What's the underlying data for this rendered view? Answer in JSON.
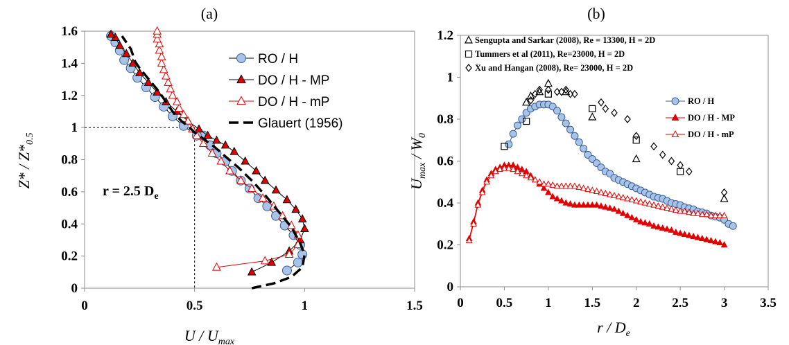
{
  "chart_data": [
    {
      "type": "scatter",
      "panel_label": "(a)",
      "xlabel": "U / U_max",
      "ylabel": "Z* / Z*_0.5",
      "xlim": [
        0,
        1.5
      ],
      "ylim": [
        0,
        1.6
      ],
      "xticks": [
        "0",
        "0.5",
        "1",
        "1.5"
      ],
      "yticks": [
        "0",
        "0.2",
        "0.4",
        "0.6",
        "0.8",
        "1",
        "1.2",
        "1.4",
        "1.6"
      ],
      "annotation": "r = 2.5 D",
      "annotation_sub": "e",
      "reference_lines": {
        "x": 0.5,
        "y": 1.0
      },
      "legend_position": "top-right",
      "series": [
        {
          "name": "RO / H",
          "marker": "circle",
          "fill": "#a7c4e8",
          "stroke": "#3a5f96",
          "x": [
            0.92,
            0.97,
            0.99,
            0.98,
            0.95,
            0.91,
            0.87,
            0.83,
            0.79,
            0.75,
            0.71,
            0.67,
            0.64,
            0.6,
            0.57,
            0.54,
            0.51,
            0.45,
            0.4,
            0.36,
            0.32,
            0.28,
            0.24,
            0.21,
            0.18,
            0.16,
            0.14,
            0.12
          ],
          "y": [
            0.11,
            0.16,
            0.21,
            0.27,
            0.33,
            0.39,
            0.45,
            0.51,
            0.56,
            0.62,
            0.67,
            0.73,
            0.79,
            0.84,
            0.89,
            0.95,
            0.95,
            1.01,
            1.07,
            1.13,
            1.19,
            1.25,
            1.31,
            1.37,
            1.42,
            1.48,
            1.53,
            1.57
          ]
        },
        {
          "name": "DO / H - MP",
          "marker": "triangle",
          "fill": "#e00000",
          "stroke": "#000000",
          "x": [
            0.76,
            0.85,
            0.93,
            0.98,
            1.0,
            0.99,
            0.96,
            0.92,
            0.87,
            0.82,
            0.78,
            0.73,
            0.68,
            0.64,
            0.6,
            0.56,
            0.52,
            0.47,
            0.42,
            0.37,
            0.33,
            0.29,
            0.25,
            0.22,
            0.19,
            0.16,
            0.14,
            0.12
          ],
          "y": [
            0.1,
            0.16,
            0.23,
            0.3,
            0.37,
            0.43,
            0.49,
            0.55,
            0.61,
            0.67,
            0.73,
            0.79,
            0.85,
            0.89,
            0.92,
            0.95,
            0.99,
            1.04,
            1.1,
            1.16,
            1.22,
            1.28,
            1.34,
            1.4,
            1.46,
            1.51,
            1.56,
            1.58
          ]
        },
        {
          "name": "DO / H - mP",
          "marker": "triangle-open",
          "fill": "#ffffff",
          "stroke": "#e00000",
          "x": [
            0.6,
            0.82,
            0.93,
            0.97,
            0.97,
            0.94,
            0.9,
            0.86,
            0.81,
            0.76,
            0.71,
            0.66,
            0.62,
            0.58,
            0.54,
            0.51,
            0.49,
            0.47,
            0.45,
            0.43,
            0.42,
            0.4,
            0.39,
            0.38,
            0.37,
            0.36,
            0.35,
            0.35,
            0.34,
            0.34,
            0.33,
            0.33,
            0.33
          ],
          "y": [
            0.13,
            0.17,
            0.21,
            0.27,
            0.33,
            0.39,
            0.45,
            0.51,
            0.56,
            0.62,
            0.67,
            0.73,
            0.79,
            0.84,
            0.9,
            0.95,
            0.99,
            1.04,
            1.08,
            1.12,
            1.16,
            1.2,
            1.24,
            1.28,
            1.32,
            1.36,
            1.4,
            1.44,
            1.48,
            1.52,
            1.55,
            1.58,
            1.6
          ]
        },
        {
          "name": "Glauert (1956)",
          "marker": "dashed-line",
          "stroke": "#000000",
          "x": [
            0.76,
            0.86,
            0.94,
            0.99,
            1.0,
            0.98,
            0.94,
            0.88,
            0.82,
            0.76,
            0.7,
            0.64,
            0.59,
            0.54,
            0.5,
            0.47,
            0.44,
            0.42,
            0.4,
            0.38,
            0.36,
            0.34,
            0.31,
            0.28,
            0.25,
            0.23,
            0.22,
            0.21,
            0.19,
            0.17
          ],
          "y": [
            0.0,
            0.03,
            0.07,
            0.13,
            0.21,
            0.28,
            0.38,
            0.48,
            0.58,
            0.67,
            0.75,
            0.82,
            0.88,
            0.93,
            0.97,
            1.01,
            1.04,
            1.07,
            1.1,
            1.14,
            1.18,
            1.22,
            1.27,
            1.32,
            1.37,
            1.41,
            1.45,
            1.49,
            1.53,
            1.57
          ]
        }
      ]
    },
    {
      "type": "scatter",
      "panel_label": "(b)",
      "xlabel": "r / D_e",
      "ylabel": "U_max / W_0",
      "xlim": [
        0,
        3.5
      ],
      "ylim": [
        0,
        1.2
      ],
      "xticks": [
        "0",
        "0.5",
        "1",
        "1.5",
        "2",
        "2.5",
        "3",
        "3.5"
      ],
      "yticks": [
        "0",
        "0.2",
        "0.4",
        "0.6",
        "0.8",
        "1",
        "1.2"
      ],
      "notes": [
        {
          "symbol": "Δ",
          "text": "Sengupta and Sarkar (2008), Re = 13300, H = 2D"
        },
        {
          "symbol": "□",
          "text": "Tummers et al (2011), Re=23000,  H = 2D"
        },
        {
          "symbol": "◇",
          "text": "Xu and Hangan (2008), Re= 23000, H = 2D"
        }
      ],
      "legend_position": "right",
      "series": [
        {
          "name": "RO / H",
          "marker": "circle",
          "fill": "#a7c4e8",
          "stroke": "#3a5f96",
          "x": [
            0.55,
            0.6,
            0.65,
            0.7,
            0.75,
            0.8,
            0.85,
            0.9,
            0.95,
            1.0,
            1.05,
            1.1,
            1.15,
            1.2,
            1.25,
            1.3,
            1.35,
            1.4,
            1.45,
            1.5,
            1.55,
            1.6,
            1.65,
            1.7,
            1.75,
            1.8,
            1.85,
            1.9,
            1.95,
            2.0,
            2.05,
            2.1,
            2.15,
            2.2,
            2.25,
            2.3,
            2.35,
            2.4,
            2.45,
            2.5,
            2.55,
            2.6,
            2.65,
            2.7,
            2.75,
            2.8,
            2.85,
            2.9,
            2.95,
            3.0,
            3.05,
            3.1
          ],
          "y": [
            0.68,
            0.73,
            0.77,
            0.8,
            0.83,
            0.85,
            0.86,
            0.87,
            0.87,
            0.87,
            0.86,
            0.84,
            0.81,
            0.78,
            0.75,
            0.72,
            0.69,
            0.66,
            0.63,
            0.61,
            0.59,
            0.57,
            0.55,
            0.54,
            0.52,
            0.51,
            0.5,
            0.49,
            0.48,
            0.47,
            0.46,
            0.45,
            0.44,
            0.43,
            0.425,
            0.42,
            0.41,
            0.4,
            0.395,
            0.39,
            0.38,
            0.375,
            0.37,
            0.36,
            0.355,
            0.35,
            0.34,
            0.335,
            0.33,
            0.32,
            0.3,
            0.29
          ]
        },
        {
          "name": "DO / H - MP",
          "marker": "triangle",
          "fill": "#e00000",
          "stroke": "#e00000",
          "x": [
            0.1,
            0.15,
            0.2,
            0.25,
            0.3,
            0.35,
            0.4,
            0.45,
            0.5,
            0.55,
            0.6,
            0.65,
            0.7,
            0.75,
            0.8,
            0.85,
            0.9,
            0.95,
            1.0,
            1.05,
            1.1,
            1.15,
            1.2,
            1.25,
            1.3,
            1.35,
            1.4,
            1.45,
            1.5,
            1.55,
            1.6,
            1.65,
            1.7,
            1.75,
            1.8,
            1.85,
            1.9,
            1.95,
            2.0,
            2.05,
            2.1,
            2.15,
            2.2,
            2.25,
            2.3,
            2.35,
            2.4,
            2.45,
            2.5,
            2.55,
            2.6,
            2.65,
            2.7,
            2.75,
            2.8,
            2.85,
            2.9,
            2.95,
            3.0
          ],
          "y": [
            0.23,
            0.31,
            0.4,
            0.46,
            0.51,
            0.54,
            0.56,
            0.57,
            0.58,
            0.58,
            0.58,
            0.57,
            0.56,
            0.55,
            0.53,
            0.51,
            0.49,
            0.47,
            0.45,
            0.43,
            0.42,
            0.41,
            0.4,
            0.395,
            0.39,
            0.39,
            0.39,
            0.39,
            0.39,
            0.39,
            0.385,
            0.38,
            0.375,
            0.37,
            0.36,
            0.35,
            0.34,
            0.33,
            0.32,
            0.31,
            0.305,
            0.3,
            0.29,
            0.285,
            0.28,
            0.275,
            0.27,
            0.26,
            0.255,
            0.25,
            0.245,
            0.24,
            0.235,
            0.23,
            0.225,
            0.22,
            0.215,
            0.21,
            0.2
          ]
        },
        {
          "name": "DO / H - mP",
          "marker": "triangle-open",
          "fill": "#ffffff",
          "stroke": "#e00000",
          "x": [
            0.1,
            0.15,
            0.2,
            0.25,
            0.3,
            0.35,
            0.4,
            0.45,
            0.5,
            0.55,
            0.6,
            0.65,
            0.7,
            0.75,
            0.8,
            0.85,
            0.9,
            0.95,
            1.0,
            1.05,
            1.1,
            1.15,
            1.2,
            1.25,
            1.3,
            1.35,
            1.4,
            1.45,
            1.5,
            1.55,
            1.6,
            1.65,
            1.7,
            1.75,
            1.8,
            1.85,
            1.9,
            1.95,
            2.0,
            2.05,
            2.1,
            2.15,
            2.2,
            2.25,
            2.3,
            2.35,
            2.4,
            2.45,
            2.5,
            2.55,
            2.6,
            2.65,
            2.7,
            2.75,
            2.8,
            2.85,
            2.9,
            2.95,
            3.0
          ],
          "y": [
            0.22,
            0.3,
            0.39,
            0.45,
            0.5,
            0.53,
            0.55,
            0.56,
            0.565,
            0.565,
            0.56,
            0.55,
            0.54,
            0.53,
            0.52,
            0.51,
            0.5,
            0.49,
            0.49,
            0.485,
            0.48,
            0.48,
            0.48,
            0.48,
            0.48,
            0.475,
            0.47,
            0.465,
            0.46,
            0.455,
            0.45,
            0.445,
            0.44,
            0.435,
            0.43,
            0.425,
            0.42,
            0.415,
            0.41,
            0.405,
            0.4,
            0.395,
            0.39,
            0.385,
            0.38,
            0.375,
            0.37,
            0.365,
            0.36,
            0.36,
            0.355,
            0.35,
            0.35,
            0.345,
            0.345,
            0.34,
            0.34,
            0.34,
            0.34
          ]
        },
        {
          "name": "Sengupta and Sarkar (2008)",
          "marker": "ref-triangle",
          "legend": false,
          "x": [
            0.75,
            0.8,
            0.9,
            1.0,
            1.2,
            1.5,
            2.0,
            3.0
          ],
          "y": [
            0.88,
            0.91,
            0.93,
            0.97,
            0.93,
            0.81,
            0.61,
            0.42
          ]
        },
        {
          "name": "Tummers et al (2011)",
          "marker": "ref-square",
          "legend": false,
          "x": [
            0.5,
            0.75,
            1.0,
            1.5,
            2.0,
            2.5
          ],
          "y": [
            0.67,
            0.79,
            0.92,
            0.85,
            0.7,
            0.55
          ]
        },
        {
          "name": "Xu and Hangan (2008)",
          "marker": "ref-diamond",
          "legend": false,
          "x": [
            0.8,
            0.85,
            0.9,
            1.0,
            1.1,
            1.15,
            1.2,
            1.25,
            1.3,
            1.6,
            1.65,
            1.75,
            1.9,
            2.0,
            2.2,
            2.3,
            2.4,
            2.5,
            2.6,
            3.0
          ],
          "y": [
            0.89,
            0.92,
            0.94,
            0.94,
            0.93,
            0.93,
            0.94,
            0.92,
            0.92,
            0.88,
            0.85,
            0.83,
            0.8,
            0.72,
            0.67,
            0.63,
            0.6,
            0.58,
            0.55,
            0.45
          ]
        }
      ]
    }
  ]
}
